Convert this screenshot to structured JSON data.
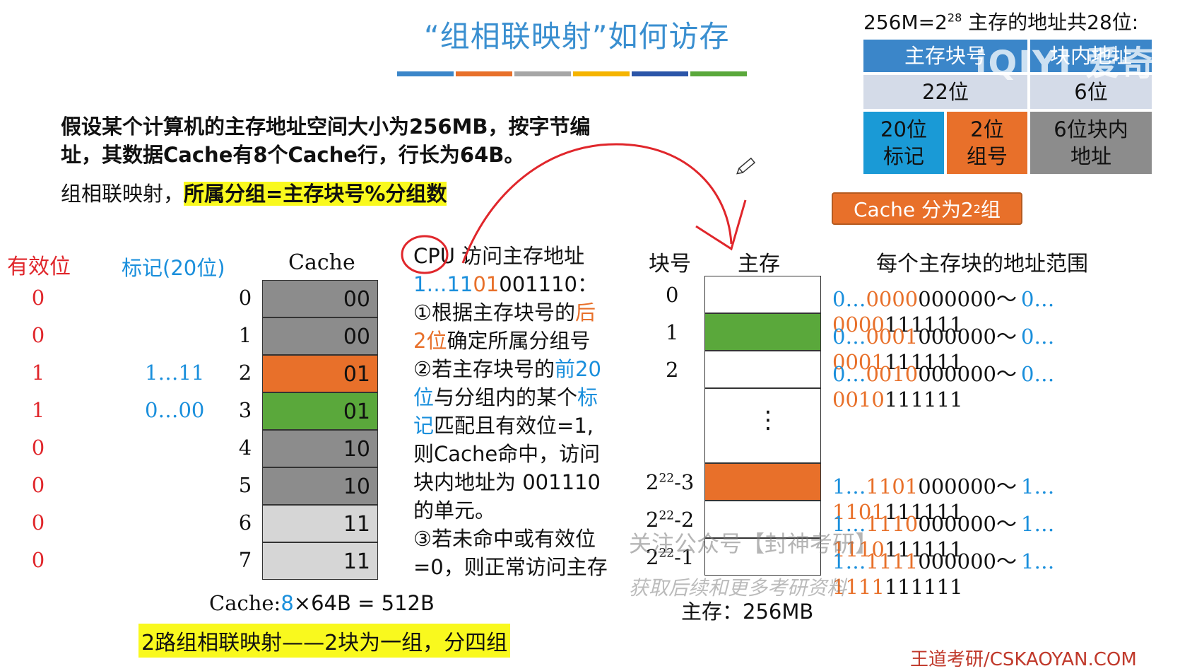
{
  "title": "“组相联映射”如何访存",
  "color_bars": [
    "#3b86c9",
    "#e8702a",
    "#a6a6a6",
    "#f5b400",
    "#2b55a8",
    "#5aa83b"
  ],
  "address_info": {
    "header_prefix": "256M=2",
    "header_exp": "28",
    "header_suffix": " 主存的地址共28位:",
    "col1": "主存块号",
    "col2": "块内地址",
    "bits_block": "22位",
    "bits_offset": "6位",
    "tag_bits": "20位标记",
    "group_bits": "2位组号",
    "offset_bits": "6位块内地址",
    "cache_groups_prefix": "Cache 分为2",
    "cache_groups_exp": "2",
    "cache_groups_suffix": "组"
  },
  "intro": {
    "line1": "假设某个计算机的主存地址空间大小为256MB，按字节编",
    "line2": "址，其数据Cache有8个Cache行，行长为64B。",
    "rule_prefix": "组相联映射，",
    "rule_highlight": "所属分组=主存块号%分组数"
  },
  "cache": {
    "valid_header": "有效位",
    "tag_header": "标记(20位)",
    "cache_header": "Cache",
    "rows": [
      {
        "index": "0",
        "valid": "0",
        "tag": "",
        "group": "00",
        "color": "#8c8c8c"
      },
      {
        "index": "1",
        "valid": "0",
        "tag": "",
        "group": "00",
        "color": "#8c8c8c"
      },
      {
        "index": "2",
        "valid": "1",
        "tag": "1…11",
        "group": "01",
        "color": "#e8702a"
      },
      {
        "index": "3",
        "valid": "1",
        "tag": "0…00",
        "group": "01",
        "color": "#5aa83b"
      },
      {
        "index": "4",
        "valid": "0",
        "tag": "",
        "group": "10",
        "color": "#8c8c8c"
      },
      {
        "index": "5",
        "valid": "0",
        "tag": "",
        "group": "10",
        "color": "#8c8c8c"
      },
      {
        "index": "6",
        "valid": "0",
        "tag": "",
        "group": "11",
        "color": "#d6d6d6"
      },
      {
        "index": "7",
        "valid": "0",
        "tag": "",
        "group": "11",
        "color": "#d6d6d6"
      }
    ],
    "size_label": "Cache:",
    "size_count": "8",
    "size_rest": "×64B = 512B",
    "mapping_note": "2路组相联映射——2块为一组，分四组"
  },
  "access": {
    "heading": "CPU 访问主存地址",
    "addr_blue": "1…11",
    "addr_orange": "01",
    "addr_black": "001110：",
    "step1_a": "①根据主存块号的",
    "step1_b": "后",
    "step1_c": "2位",
    "step1_d": "确定所属分组号",
    "step2_a": "②若主存块号的",
    "step2_b": "前20",
    "step2_c": "位",
    "step2_d": "与分组内的某个",
    "step2_e": "标",
    "step2_f": "记",
    "step2_g": "匹配且有效位=1,",
    "step2_h": "则Cache命中，访问",
    "step2_i": "块内地址为 001110",
    "step2_j": "的单元。",
    "step3_a": "③若未命中或有效位",
    "step3_b": "=0，则正常访问主存"
  },
  "memory": {
    "block_header": "块号",
    "mem_header": "主存",
    "range_header": "每个主存块的地址范围",
    "size_label": "主存：256MB",
    "ellipsis": "⋮",
    "blocks": [
      {
        "num": "0",
        "range_a1": "0…",
        "range_a2": "0000",
        "range_a3": "000000～",
        "range_b1": "0…",
        "range_b2": "0000",
        "range_b3": "111111"
      },
      {
        "num": "1",
        "range_a1": "0…",
        "range_a2": "0001",
        "range_a3": "000000～",
        "range_b1": "0…",
        "range_b2": "0001",
        "range_b3": "111111"
      },
      {
        "num": "2",
        "range_a1": "0…",
        "range_a2": "0010",
        "range_a3": "000000～",
        "range_b1": "0…",
        "range_b2": "0010",
        "range_b3": "111111"
      },
      {
        "num_base": "2",
        "num_exp": "22",
        "num_tail": "-3",
        "range_a1": "1…",
        "range_a2": "1101",
        "range_a3": "000000～",
        "range_b1": "1…",
        "range_b2": "1101",
        "range_b3": "111111"
      },
      {
        "num_base": "2",
        "num_exp": "22",
        "num_tail": "-2",
        "range_a1": "1…",
        "range_a2": "1110",
        "range_a3": "000000～",
        "range_b1": "1…",
        "range_b2": "1110",
        "range_b3": "111111"
      },
      {
        "num_base": "2",
        "num_exp": "22",
        "num_tail": "-1",
        "range_a1": "1…",
        "range_a2": "1111",
        "range_a3": "000000～",
        "range_b1": "1…",
        "range_b2": "1111",
        "range_b3": "111111"
      }
    ]
  },
  "watermark": {
    "line1": "关注公众号【封神考研】",
    "line2": "获取后续和更多考研资料",
    "brand": "王道考研/CSKAOYAN.COM",
    "logo": "iQIYI 爱奇艺"
  }
}
